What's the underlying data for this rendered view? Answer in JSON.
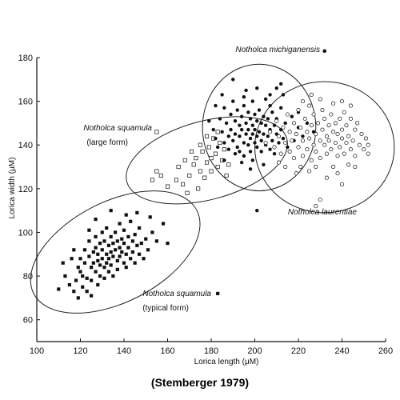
{
  "chart_data": {
    "type": "scatter",
    "title": "",
    "caption": "(Stemberger 1979)",
    "xlabel": "Lorica length (μM)",
    "ylabel": "Lorica width (μM)",
    "xlim": [
      100,
      260
    ],
    "ylim": [
      50,
      180
    ],
    "x_ticks": [
      100,
      120,
      140,
      160,
      180,
      200,
      220,
      240,
      260
    ],
    "y_ticks": [
      60,
      80,
      100,
      120,
      140,
      160,
      180
    ],
    "grid": false,
    "ellipses": [
      {
        "cx": 136,
        "cy": 91,
        "rx": 42,
        "ry": 23,
        "angle": 27
      },
      {
        "cx": 178,
        "cy": 133,
        "rx": 38,
        "ry": 18,
        "angle": 15
      },
      {
        "cx": 202,
        "cy": 148,
        "rx": 26,
        "ry": 29,
        "angle": 0
      },
      {
        "cx": 232,
        "cy": 139,
        "rx": 32,
        "ry": 30,
        "angle": 0
      }
    ],
    "annotations": [
      {
        "text": "Notholca michiganensis",
        "x": 232,
        "y": 183,
        "marker": "filled-circle"
      },
      {
        "text": "Notholca squamula",
        "sub": "(large form)",
        "x": 155,
        "y": 146,
        "marker": "open-square"
      },
      {
        "text": "Notholca laurentiae",
        "x": 228,
        "y": 112,
        "marker": "open-circle"
      },
      {
        "text": "Notholca squamula",
        "sub": "(typical form)",
        "x": 183,
        "y": 72,
        "marker": "filled-square"
      }
    ],
    "series": [
      {
        "marker": "filled-square",
        "points": [
          [
            113,
            80
          ],
          [
            115,
            76
          ],
          [
            117,
            73
          ],
          [
            118,
            78
          ],
          [
            119,
            84
          ],
          [
            120,
            88
          ],
          [
            120,
            82
          ],
          [
            121,
            75
          ],
          [
            121,
            80
          ],
          [
            122,
            92
          ],
          [
            122,
            86
          ],
          [
            123,
            79
          ],
          [
            123,
            73
          ],
          [
            124,
            96
          ],
          [
            124,
            89
          ],
          [
            125,
            84
          ],
          [
            125,
            78
          ],
          [
            125,
            71
          ],
          [
            126,
            91
          ],
          [
            126,
            86
          ],
          [
            127,
            98
          ],
          [
            127,
            93
          ],
          [
            127,
            82
          ],
          [
            128,
            90
          ],
          [
            128,
            87
          ],
          [
            128,
            76
          ],
          [
            129,
            95
          ],
          [
            129,
            85
          ],
          [
            129,
            80
          ],
          [
            130,
            100
          ],
          [
            130,
            92
          ],
          [
            130,
            88
          ],
          [
            131,
            84
          ],
          [
            131,
            79
          ],
          [
            131,
            96
          ],
          [
            132,
            90
          ],
          [
            132,
            86
          ],
          [
            132,
            102
          ],
          [
            133,
            94
          ],
          [
            133,
            88
          ],
          [
            133,
            82
          ],
          [
            134,
            98
          ],
          [
            134,
            91
          ],
          [
            134,
            85
          ],
          [
            135,
            95
          ],
          [
            135,
            89
          ],
          [
            135,
            80
          ],
          [
            136,
            100
          ],
          [
            136,
            92
          ],
          [
            137,
            87
          ],
          [
            137,
            96
          ],
          [
            137,
            83
          ],
          [
            138,
            93
          ],
          [
            138,
            89
          ],
          [
            138,
            104
          ],
          [
            139,
            97
          ],
          [
            139,
            91
          ],
          [
            140,
            86
          ],
          [
            140,
            95
          ],
          [
            140,
            101
          ],
          [
            141,
            90
          ],
          [
            141,
            84
          ],
          [
            142,
            98
          ],
          [
            142,
            93
          ],
          [
            143,
            88
          ],
          [
            143,
            105
          ],
          [
            144,
            96
          ],
          [
            144,
            91
          ],
          [
            145,
            86
          ],
          [
            145,
            99
          ],
          [
            146,
            94
          ],
          [
            147,
            90
          ],
          [
            147,
            102
          ],
          [
            148,
            95
          ],
          [
            149,
            88
          ],
          [
            150,
            97
          ],
          [
            151,
            92
          ],
          [
            152,
            107
          ],
          [
            153,
            100
          ],
          [
            155,
            96
          ],
          [
            158,
            104
          ],
          [
            160,
            95
          ],
          [
            110,
            74
          ],
          [
            112,
            86
          ],
          [
            117,
            92
          ],
          [
            119,
            70
          ],
          [
            134,
            110
          ],
          [
            141,
            108
          ],
          [
            146,
            109
          ],
          [
            127,
            106
          ],
          [
            124,
            101
          ],
          [
            116,
            88
          ]
        ]
      },
      {
        "marker": "open-square",
        "points": [
          [
            153,
            124
          ],
          [
            155,
            128
          ],
          [
            157,
            126
          ],
          [
            160,
            121
          ],
          [
            164,
            124
          ],
          [
            165,
            130
          ],
          [
            167,
            122
          ],
          [
            169,
            118
          ],
          [
            170,
            126
          ],
          [
            172,
            131
          ],
          [
            173,
            134
          ],
          [
            175,
            128
          ],
          [
            176,
            137
          ],
          [
            177,
            125
          ],
          [
            178,
            132
          ],
          [
            179,
            139
          ],
          [
            180,
            134
          ],
          [
            180,
            128
          ],
          [
            181,
            143
          ],
          [
            182,
            136
          ],
          [
            183,
            130
          ],
          [
            184,
            141
          ],
          [
            185,
            133
          ],
          [
            186,
            138
          ],
          [
            187,
            126
          ],
          [
            175,
            140
          ],
          [
            171,
            137
          ],
          [
            168,
            133
          ],
          [
            178,
            144
          ],
          [
            183,
            146
          ],
          [
            188,
            131
          ],
          [
            174,
            120
          ]
        ]
      },
      {
        "marker": "filled-circle",
        "points": [
          [
            179,
            151
          ],
          [
            181,
            147
          ],
          [
            182,
            143
          ],
          [
            183,
            139
          ],
          [
            184,
            152
          ],
          [
            185,
            146
          ],
          [
            186,
            141
          ],
          [
            186,
            157
          ],
          [
            187,
            150
          ],
          [
            188,
            144
          ],
          [
            188,
            138
          ],
          [
            189,
            154
          ],
          [
            189,
            147
          ],
          [
            190,
            142
          ],
          [
            190,
            160
          ],
          [
            191,
            151
          ],
          [
            191,
            145
          ],
          [
            192,
            139
          ],
          [
            192,
            156
          ],
          [
            193,
            149
          ],
          [
            193,
            144
          ],
          [
            193,
            137
          ],
          [
            194,
            153
          ],
          [
            194,
            147
          ],
          [
            195,
            141
          ],
          [
            195,
            158
          ],
          [
            195,
            135
          ],
          [
            196,
            150
          ],
          [
            196,
            145
          ],
          [
            197,
            155
          ],
          [
            197,
            140
          ],
          [
            197,
            147
          ],
          [
            198,
            152
          ],
          [
            198,
            143
          ],
          [
            198,
            137
          ],
          [
            199,
            149
          ],
          [
            199,
            145
          ],
          [
            199,
            160
          ],
          [
            200,
            141
          ],
          [
            200,
            154
          ],
          [
            200,
            147
          ],
          [
            201,
            144
          ],
          [
            201,
            139
          ],
          [
            201,
            151
          ],
          [
            202,
            156
          ],
          [
            202,
            146
          ],
          [
            203,
            142
          ],
          [
            203,
            150
          ],
          [
            203,
            137
          ],
          [
            204,
            153
          ],
          [
            204,
            145
          ],
          [
            205,
            140
          ],
          [
            205,
            149
          ],
          [
            205,
            161
          ],
          [
            206,
            144
          ],
          [
            206,
            152
          ],
          [
            207,
            138
          ],
          [
            207,
            147
          ],
          [
            208,
            155
          ],
          [
            208,
            142
          ],
          [
            209,
            149
          ],
          [
            209,
            136
          ],
          [
            210,
            145
          ],
          [
            210,
            152
          ],
          [
            211,
            141
          ],
          [
            212,
            147
          ],
          [
            212,
            157
          ],
          [
            213,
            143
          ],
          [
            214,
            150
          ],
          [
            215,
            139
          ],
          [
            216,
            146
          ],
          [
            217,
            153
          ],
          [
            218,
            142
          ],
          [
            220,
            148
          ],
          [
            222,
            144
          ],
          [
            224,
            150
          ],
          [
            227,
            146
          ],
          [
            196,
            165
          ],
          [
            201,
            166
          ],
          [
            207,
            163
          ],
          [
            213,
            163
          ],
          [
            185,
            163
          ],
          [
            190,
            170
          ],
          [
            182,
            158
          ],
          [
            194,
            132
          ],
          [
            198,
            129
          ],
          [
            204,
            131
          ],
          [
            201,
            110
          ],
          [
            232,
            183
          ],
          [
            212,
            168
          ],
          [
            195,
            162
          ],
          [
            199,
            133
          ],
          [
            207,
            158
          ],
          [
            210,
            166
          ],
          [
            220,
            155
          ],
          [
            191,
            136
          ],
          [
            186,
            133
          ]
        ]
      },
      {
        "marker": "open-circle",
        "points": [
          [
            205,
            141
          ],
          [
            207,
            146
          ],
          [
            209,
            139
          ],
          [
            210,
            151
          ],
          [
            211,
            144
          ],
          [
            212,
            136
          ],
          [
            213,
            148
          ],
          [
            214,
            141
          ],
          [
            215,
            154
          ],
          [
            216,
            137
          ],
          [
            216,
            146
          ],
          [
            217,
            142
          ],
          [
            218,
            150
          ],
          [
            218,
            134
          ],
          [
            219,
            145
          ],
          [
            220,
            139
          ],
          [
            220,
            156
          ],
          [
            221,
            148
          ],
          [
            222,
            142
          ],
          [
            222,
            135
          ],
          [
            223,
            152
          ],
          [
            224,
            146
          ],
          [
            224,
            138
          ],
          [
            225,
            143
          ],
          [
            225,
            158
          ],
          [
            226,
            149
          ],
          [
            226,
            133
          ],
          [
            227,
            140
          ],
          [
            227,
            154
          ],
          [
            228,
            145
          ],
          [
            228,
            137
          ],
          [
            229,
            150
          ],
          [
            230,
            142
          ],
          [
            230,
            134
          ],
          [
            231,
            147
          ],
          [
            231,
            156
          ],
          [
            232,
            140
          ],
          [
            232,
            152
          ],
          [
            233,
            144
          ],
          [
            233,
            136
          ],
          [
            234,
            149
          ],
          [
            234,
            142
          ],
          [
            235,
            154
          ],
          [
            235,
            138
          ],
          [
            236,
            146
          ],
          [
            236,
            130
          ],
          [
            237,
            141
          ],
          [
            237,
            150
          ],
          [
            238,
            135
          ],
          [
            238,
            145
          ],
          [
            239,
            152
          ],
          [
            239,
            139
          ],
          [
            240,
            143
          ],
          [
            240,
            147
          ],
          [
            241,
            136
          ],
          [
            241,
            155
          ],
          [
            242,
            141
          ],
          [
            242,
            149
          ],
          [
            243,
            144
          ],
          [
            244,
            138
          ],
          [
            244,
            152
          ],
          [
            245,
            142
          ],
          [
            246,
            147
          ],
          [
            246,
            135
          ],
          [
            247,
            150
          ],
          [
            248,
            140
          ],
          [
            249,
            145
          ],
          [
            250,
            138
          ],
          [
            251,
            143
          ],
          [
            252,
            136
          ],
          [
            222,
            160
          ],
          [
            226,
            163
          ],
          [
            230,
            161
          ],
          [
            236,
            159
          ],
          [
            240,
            160
          ],
          [
            244,
            158
          ],
          [
            219,
            127
          ],
          [
            225,
            128
          ],
          [
            233,
            125
          ],
          [
            240,
            122
          ],
          [
            246,
            130
          ],
          [
            252,
            140
          ],
          [
            230,
            115
          ],
          [
            214,
            130
          ],
          [
            228,
            130
          ],
          [
            238,
            127
          ],
          [
            243,
            131
          ],
          [
            221,
            130
          ],
          [
            211,
            132
          ]
        ]
      }
    ]
  }
}
